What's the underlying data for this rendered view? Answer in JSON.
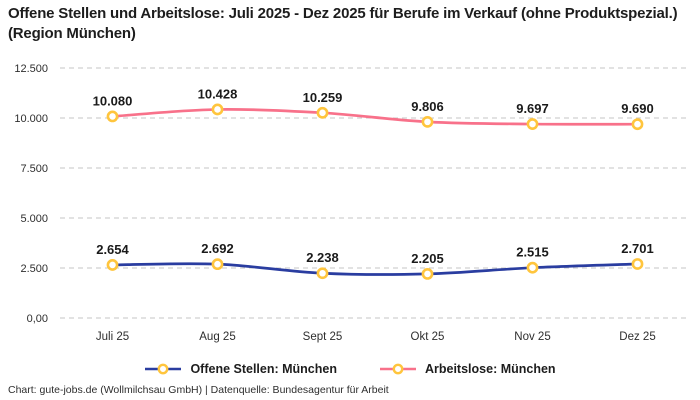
{
  "title": "Offene Stellen und Arbeitslose: Juli 2025 - Dez 2025 für Berufe im Verkauf (ohne Produktspezial.) (Region München)",
  "footer": "Chart: gute-jobs.de (Wollmilchsau GmbH) | Datenquelle: Bundesagentur für Arbeit",
  "colors": {
    "open_positions_line": "#2a3da0",
    "unemployed_line": "#f8718a",
    "marker_ring": "#ffc53d",
    "marker_fill": "#ffffff",
    "gridline": "#c6c6c6",
    "tick_text": "#2e2e2e",
    "data_label_text": "#1a1a1a"
  },
  "chart_data": {
    "type": "line",
    "categories": [
      "Juli 25",
      "Aug 25",
      "Sept 25",
      "Okt 25",
      "Nov 25",
      "Dez 25"
    ],
    "series": [
      {
        "name": "Offene Stellen: München",
        "color": "#2a3da0",
        "values": [
          2654,
          2692,
          2238,
          2205,
          2515,
          2701
        ],
        "labels": [
          "2.654",
          "2.692",
          "2.238",
          "2.205",
          "2.515",
          "2.701"
        ]
      },
      {
        "name": "Arbeitslose: München",
        "color": "#f8718a",
        "values": [
          10080,
          10428,
          10259,
          9806,
          9697,
          9690
        ],
        "labels": [
          "10.080",
          "10.428",
          "10.259",
          "9.806",
          "9.697",
          "9.690"
        ]
      }
    ],
    "y_ticks": [
      {
        "value": 12500,
        "label": "12.500"
      },
      {
        "value": 10000,
        "label": "10.000"
      },
      {
        "value": 7500,
        "label": "7.500"
      },
      {
        "value": 5000,
        "label": "5.000"
      },
      {
        "value": 2500,
        "label": "2.500"
      },
      {
        "value": 0,
        "label": "0,00"
      }
    ],
    "ylim": [
      0,
      13400
    ],
    "grid": "dashed-horizontal",
    "legend_position": "bottom-center",
    "marker": "ring"
  }
}
